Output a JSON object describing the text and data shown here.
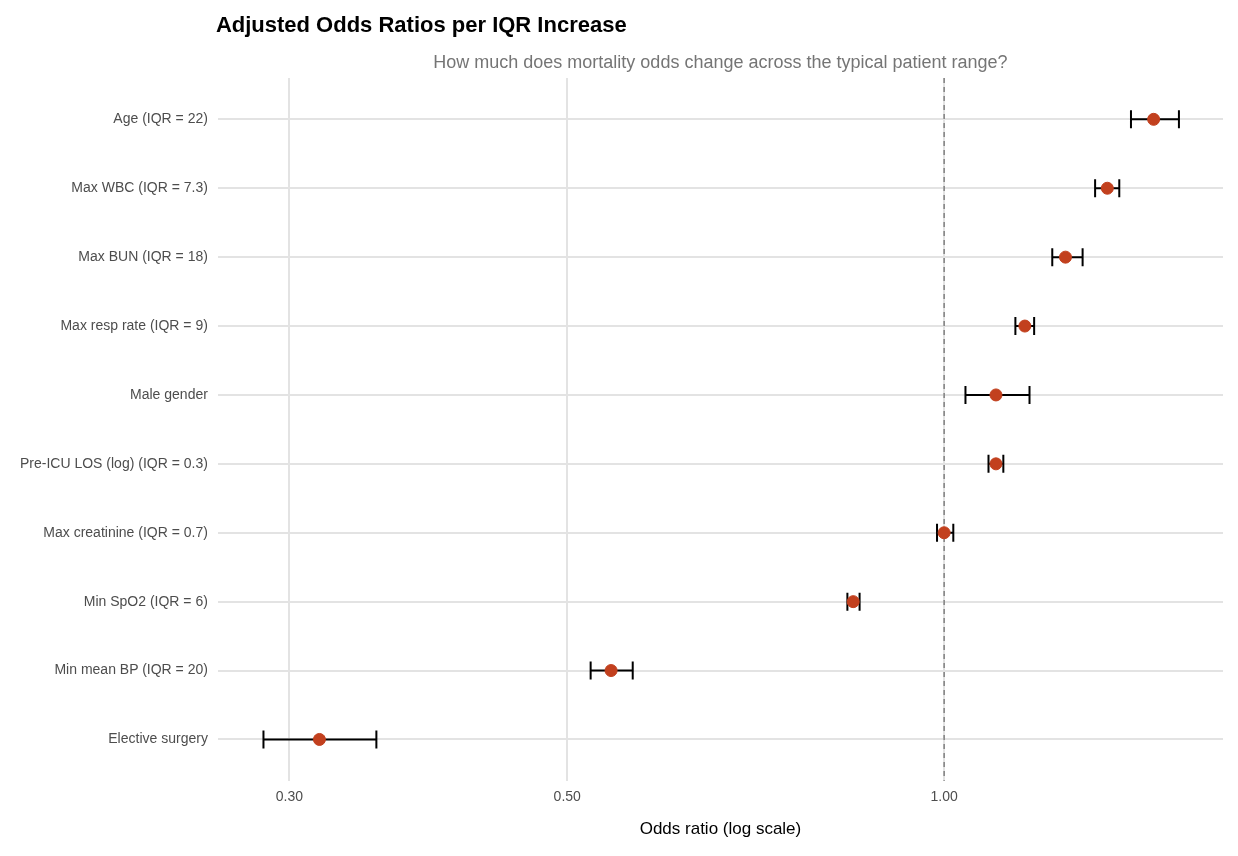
{
  "chart_data": {
    "type": "scatter",
    "title": "Adjusted Odds Ratios per IQR Increase",
    "subtitle": "How much does mortality odds change across the typical patient range?",
    "xlabel": "Odds ratio (log scale)",
    "orientation": "horizontal",
    "log": "x",
    "categories": [
      "Age (IQR = 22)",
      "Max WBC (IQR = 7.3)",
      "Max BUN (IQR = 18)",
      "Max resp rate (IQR = 9)",
      "Male gender",
      "Pre-ICU LOS (log) (IQR = 0.3)",
      "Max creatinine (IQR = 0.7)",
      "Min SpO2 (IQR = 6)",
      "Min mean BP (IQR = 20)",
      "Elective surgery"
    ],
    "values": [
      1.47,
      1.35,
      1.25,
      1.16,
      1.1,
      1.1,
      1.0,
      0.846,
      0.542,
      0.317
    ],
    "errors": [
      [
        1.41,
        1.54
      ],
      [
        1.32,
        1.38
      ],
      [
        1.22,
        1.29
      ],
      [
        1.14,
        1.18
      ],
      [
        1.04,
        1.17
      ],
      [
        1.085,
        1.115
      ],
      [
        0.987,
        1.017
      ],
      [
        0.837,
        0.856
      ],
      [
        0.522,
        0.564
      ],
      [
        0.286,
        0.352
      ]
    ],
    "color": "#c2401e",
    "marker": "circle",
    "xlim": [
      0.263,
      1.67
    ],
    "xticks": [
      {
        "value": 0.3,
        "label": "0.30"
      },
      {
        "value": 0.5,
        "label": "0.50"
      },
      {
        "value": 1,
        "label": "1.00"
      }
    ],
    "ref_lines": [
      {
        "axis": "x",
        "value": 1,
        "color": "#808080",
        "line_style": "dashed"
      }
    ],
    "grid": true,
    "legend": false
  }
}
